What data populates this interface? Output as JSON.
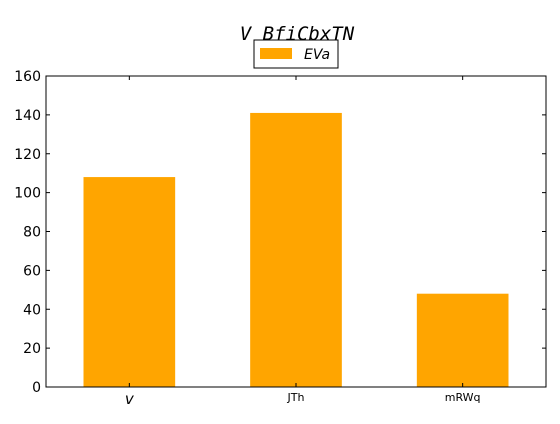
{
  "chart_data": {
    "type": "bar",
    "title": "V BfiCbxTN",
    "categories": [
      "v",
      "JTh",
      "mRWq"
    ],
    "series": [
      {
        "name": "EVa",
        "values": [
          108,
          141,
          48
        ],
        "color": "#ffa500"
      }
    ],
    "ylim": [
      0,
      160
    ],
    "yticks": [
      "0",
      "20",
      "40",
      "60",
      "80",
      "100",
      "120",
      "140",
      "160"
    ],
    "xlabel": "",
    "ylabel": "",
    "grid": false,
    "legend_position": "top-center"
  }
}
